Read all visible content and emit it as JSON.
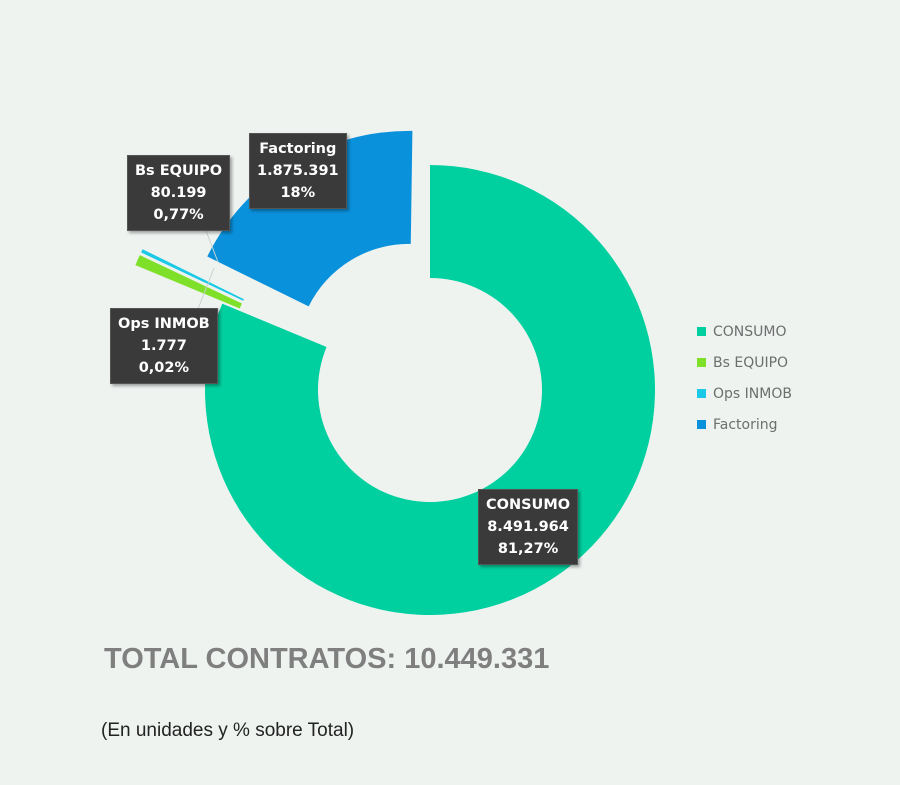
{
  "chart_data": {
    "type": "pie",
    "variant": "donut",
    "exploded": true,
    "slices": [
      {
        "key": "consumo",
        "name": "CONSUMO",
        "value": 8491964,
        "value_label": "8.491.964",
        "percent_label": "81,27%",
        "color": "#00d09f"
      },
      {
        "key": "bs_equipo",
        "name": "Bs EQUIPO",
        "value": 80199,
        "value_label": "80.199",
        "percent_label": "0,77%",
        "color": "#7fe02a"
      },
      {
        "key": "ops_inmob",
        "name": "Ops INMOB",
        "value": 1777,
        "value_label": "1.777",
        "percent_label": "0,02%",
        "color": "#19c9e6"
      },
      {
        "key": "factoring",
        "name": "Factoring",
        "value": 1875391,
        "value_label": "1.875.391",
        "percent_label": "18%",
        "color": "#0a91dc"
      }
    ],
    "legend_position": "right"
  },
  "footer": {
    "total": "TOTAL CONTRATOS: 10.449.331",
    "note": "(En unidades y % sobre Total)"
  }
}
